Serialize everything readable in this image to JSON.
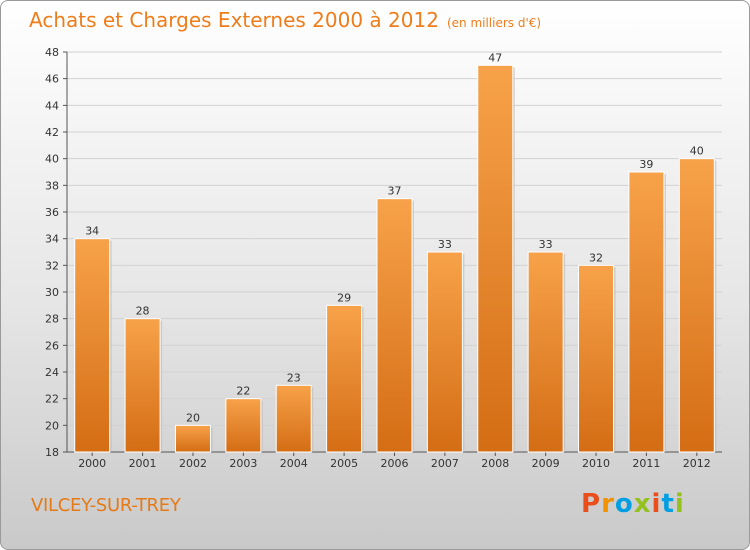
{
  "chart_data": {
    "type": "bar",
    "title": "Achats et Charges Externes 2000 à 2012",
    "unit_note": "(en milliers d'€)",
    "categories": [
      "2000",
      "2001",
      "2002",
      "2003",
      "2004",
      "2005",
      "2006",
      "2007",
      "2008",
      "2009",
      "2010",
      "2011",
      "2012"
    ],
    "values": [
      34,
      28,
      20,
      22,
      23,
      29,
      37,
      33,
      47,
      33,
      32,
      39,
      40
    ],
    "ylim": [
      18,
      48
    ],
    "yticks": [
      18,
      20,
      22,
      24,
      26,
      28,
      30,
      32,
      34,
      36,
      38,
      40,
      42,
      44,
      46,
      48
    ],
    "grid": true,
    "data_labels": true,
    "bar_color": "#f39a3c"
  },
  "footer": {
    "place": "VILCEY-SUR-TREY",
    "brand": "Proxiti",
    "brand_colors": [
      "#e94e1b",
      "#f39200",
      "#009fe3",
      "#95c11f",
      "#e94e1b",
      "#009fe3",
      "#95c11f"
    ]
  }
}
